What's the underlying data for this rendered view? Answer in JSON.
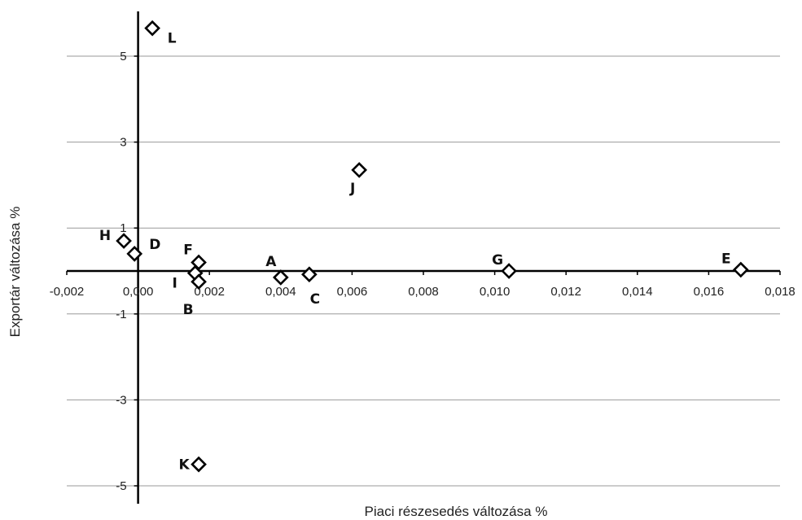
{
  "chart_data": {
    "type": "scatter",
    "title": "",
    "xlabel": "Piaci részesedés változása %",
    "ylabel": "Exportár változása %",
    "xlim": [
      -0.002,
      0.018
    ],
    "ylim": [
      -5,
      6
    ],
    "x_ticks": [
      "-0,002",
      "0,000",
      "0,002",
      "0,004",
      "0,006",
      "0,008",
      "0,010",
      "0,012",
      "0,014",
      "0,016",
      "0,018"
    ],
    "y_ticks": [
      "5",
      "3",
      "1",
      "-1",
      "-3",
      "-5"
    ],
    "grid": true,
    "legend": "none",
    "points": [
      {
        "label": "L",
        "x": 0.0004,
        "y": 5.65
      },
      {
        "label": "J",
        "x": 0.0062,
        "y": 2.35
      },
      {
        "label": "H",
        "x": -0.0004,
        "y": 0.7
      },
      {
        "label": "D",
        "x": -0.0001,
        "y": 0.4
      },
      {
        "label": "F",
        "x": 0.0017,
        "y": 0.2
      },
      {
        "label": "I",
        "x": 0.0016,
        "y": -0.05
      },
      {
        "label": "B",
        "x": 0.0017,
        "y": -0.25
      },
      {
        "label": "A",
        "x": 0.004,
        "y": -0.15
      },
      {
        "label": "C",
        "x": 0.0048,
        "y": -0.08
      },
      {
        "label": "G",
        "x": 0.0104,
        "y": 0.0
      },
      {
        "label": "E",
        "x": 0.0169,
        "y": 0.03
      },
      {
        "label": "K",
        "x": 0.0017,
        "y": -4.5
      }
    ]
  }
}
